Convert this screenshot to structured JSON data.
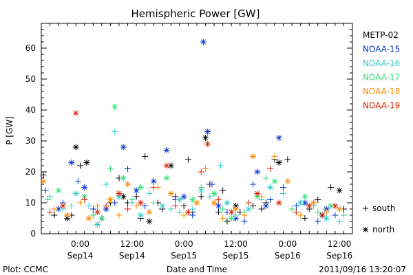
{
  "chart_data": {
    "type": "scatter",
    "title": "Hemispheric Power [GW]",
    "ylabel": "P [GW]",
    "xlabel": "Date and Time",
    "ylim": [
      0,
      68
    ],
    "xlim": [
      "2011-09-13 15:00",
      "2011-09-16 15:00"
    ],
    "yticks": [
      0,
      10,
      20,
      30,
      40,
      50,
      60
    ],
    "xticks": [
      {
        "time": "2011-09-14 00:00",
        "label": "0:00",
        "date": "Sep14"
      },
      {
        "time": "2011-09-14 12:00",
        "label": "12:00",
        "date": "Sep14"
      },
      {
        "time": "2011-09-15 00:00",
        "label": "0:00",
        "date": "Sep15"
      },
      {
        "time": "2011-09-15 12:00",
        "label": "12:00",
        "date": "Sep15"
      },
      {
        "time": "2011-09-16 00:00",
        "label": "0:00",
        "date": "Sep16"
      },
      {
        "time": "2011-09-16 12:00",
        "label": "12:00",
        "date": "Sep16"
      }
    ],
    "legend_placement": "right",
    "series": [
      {
        "name": "METP-02",
        "color": "#000000",
        "points": [
          [
            "2011-09-13 15:30",
            19,
            "+"
          ],
          [
            "2011-09-13 18:00",
            6,
            "+"
          ],
          [
            "2011-09-13 21:00",
            5,
            "*"
          ],
          [
            "2011-09-13 22:00",
            6,
            "+"
          ],
          [
            "2011-09-13 23:00",
            28,
            "*"
          ],
          [
            "2011-09-14 00:00",
            22,
            "+"
          ],
          [
            "2011-09-14 01:30",
            23,
            "*"
          ],
          [
            "2011-09-14 03:00",
            6,
            "+"
          ],
          [
            "2011-09-14 05:00",
            5,
            "*"
          ],
          [
            "2011-09-14 07:00",
            10,
            "+"
          ],
          [
            "2011-09-14 09:00",
            18,
            "+"
          ],
          [
            "2011-09-14 10:00",
            12,
            "*"
          ],
          [
            "2011-09-14 11:00",
            10,
            "+"
          ],
          [
            "2011-09-14 13:00",
            12,
            "+"
          ],
          [
            "2011-09-14 14:00",
            5,
            "+"
          ],
          [
            "2011-09-14 15:00",
            25,
            "+"
          ],
          [
            "2011-09-14 16:00",
            4,
            "*"
          ],
          [
            "2011-09-14 18:00",
            10,
            "+"
          ],
          [
            "2011-09-14 19:00",
            8,
            "+"
          ],
          [
            "2011-09-14 21:00",
            22,
            "*"
          ],
          [
            "2011-09-14 22:00",
            12,
            "+"
          ],
          [
            "2011-09-15 00:00",
            9,
            "+"
          ],
          [
            "2011-09-15 01:00",
            24,
            "+"
          ],
          [
            "2011-09-15 02:00",
            7,
            "+"
          ],
          [
            "2011-09-15 04:00",
            12,
            "+"
          ],
          [
            "2011-09-15 05:00",
            31,
            "*"
          ],
          [
            "2011-09-15 06:00",
            16,
            "+"
          ],
          [
            "2011-09-15 08:00",
            7,
            "+"
          ],
          [
            "2011-09-15 09:00",
            14,
            "+"
          ],
          [
            "2011-09-15 10:00",
            4,
            "+"
          ],
          [
            "2011-09-15 12:00",
            9,
            "*"
          ],
          [
            "2011-09-15 13:00",
            7,
            "+"
          ],
          [
            "2011-09-15 16:00",
            9,
            "+"
          ],
          [
            "2011-09-15 18:00",
            8,
            "+"
          ],
          [
            "2011-09-15 19:00",
            10,
            "+"
          ],
          [
            "2011-09-15 21:00",
            24,
            "+"
          ],
          [
            "2011-09-15 22:00",
            23,
            "*"
          ],
          [
            "2011-09-16 00:00",
            24,
            "+"
          ],
          [
            "2011-09-16 02:00",
            7,
            "+"
          ],
          [
            "2011-09-16 04:00",
            5,
            "+"
          ],
          [
            "2011-09-16 05:00",
            8,
            "+"
          ],
          [
            "2011-09-16 07:00",
            11,
            "+"
          ],
          [
            "2011-09-16 08:00",
            6,
            "*"
          ],
          [
            "2011-09-16 10:00",
            15,
            "+"
          ],
          [
            "2011-09-16 12:00",
            14,
            "*"
          ],
          [
            "2011-09-16 13:00",
            8,
            "+"
          ]
        ]
      },
      {
        "name": "NOAA-15",
        "color": "#0033cc",
        "points": [
          [
            "2011-09-13 16:00",
            14,
            "+"
          ],
          [
            "2011-09-13 19:00",
            8,
            "*"
          ],
          [
            "2011-09-13 20:00",
            10,
            "+"
          ],
          [
            "2011-09-13 22:00",
            23,
            "*"
          ],
          [
            "2011-09-13 23:30",
            17,
            "+"
          ],
          [
            "2011-09-14 01:00",
            15,
            "*"
          ],
          [
            "2011-09-14 03:00",
            8,
            "+"
          ],
          [
            "2011-09-14 06:00",
            8,
            "*"
          ],
          [
            "2011-09-14 08:00",
            10,
            "+"
          ],
          [
            "2011-09-14 10:00",
            28,
            "*"
          ],
          [
            "2011-09-14 11:00",
            21,
            "+"
          ],
          [
            "2011-09-14 13:00",
            14,
            "*"
          ],
          [
            "2011-09-14 15:00",
            9,
            "+"
          ],
          [
            "2011-09-14 17:00",
            17,
            "*"
          ],
          [
            "2011-09-14 20:00",
            27,
            "*"
          ],
          [
            "2011-09-14 22:00",
            11,
            "+"
          ],
          [
            "2011-09-15 00:00",
            12,
            "*"
          ],
          [
            "2011-09-15 02:00",
            6,
            "+"
          ],
          [
            "2011-09-15 04:30",
            62,
            "*"
          ],
          [
            "2011-09-15 05:30",
            33,
            "*"
          ],
          [
            "2011-09-15 06:30",
            16,
            "+"
          ],
          [
            "2011-09-15 08:00",
            9,
            "*"
          ],
          [
            "2011-09-15 10:00",
            7,
            "+"
          ],
          [
            "2011-09-15 12:00",
            5,
            "*"
          ],
          [
            "2011-09-15 14:00",
            4,
            "+"
          ],
          [
            "2011-09-15 16:00",
            16,
            "+"
          ],
          [
            "2011-09-15 17:00",
            20,
            "*"
          ],
          [
            "2011-09-15 19:00",
            9,
            "*"
          ],
          [
            "2011-09-15 20:00",
            11,
            "+"
          ],
          [
            "2011-09-15 22:00",
            31,
            "*"
          ],
          [
            "2011-09-15 23:00",
            15,
            "+"
          ],
          [
            "2011-09-16 02:00",
            9,
            "+"
          ],
          [
            "2011-09-16 04:00",
            10,
            "*"
          ],
          [
            "2011-09-16 07:00",
            4,
            "+"
          ],
          [
            "2011-09-16 09:00",
            8,
            "*"
          ],
          [
            "2011-09-16 11:00",
            6,
            "+"
          ]
        ]
      },
      {
        "name": "NOAA-16",
        "color": "#33cccc",
        "points": [
          [
            "2011-09-13 17:00",
            12,
            "+"
          ],
          [
            "2011-09-13 20:00",
            8,
            "+"
          ],
          [
            "2011-09-13 23:00",
            13,
            "*"
          ],
          [
            "2011-09-14 02:00",
            9,
            "+"
          ],
          [
            "2011-09-14 04:00",
            3,
            "*"
          ],
          [
            "2011-09-14 06:00",
            16,
            "+"
          ],
          [
            "2011-09-14 08:00",
            33,
            "+"
          ],
          [
            "2011-09-14 09:00",
            12,
            "*"
          ],
          [
            "2011-09-14 12:00",
            10,
            "+"
          ],
          [
            "2011-09-14 14:00",
            6,
            "*"
          ],
          [
            "2011-09-14 16:00",
            13,
            "+"
          ],
          [
            "2011-09-14 19:00",
            9,
            "*"
          ],
          [
            "2011-09-14 21:00",
            8,
            "+"
          ],
          [
            "2011-09-14 23:00",
            11,
            "*"
          ],
          [
            "2011-09-15 02:00",
            8,
            "+"
          ],
          [
            "2011-09-15 04:00",
            14,
            "*"
          ],
          [
            "2011-09-15 06:00",
            12,
            "+"
          ],
          [
            "2011-09-15 08:30",
            22,
            "+"
          ],
          [
            "2011-09-15 10:00",
            10,
            "*"
          ],
          [
            "2011-09-15 12:00",
            6,
            "+"
          ],
          [
            "2011-09-15 15:00",
            8,
            "*"
          ],
          [
            "2011-09-15 18:00",
            11,
            "+"
          ],
          [
            "2011-09-15 20:00",
            15,
            "*"
          ],
          [
            "2011-09-15 23:00",
            13,
            "+"
          ],
          [
            "2011-09-16 03:00",
            10,
            "*"
          ],
          [
            "2011-09-16 06:00",
            9,
            "+"
          ],
          [
            "2011-09-16 09:00",
            5,
            "*"
          ],
          [
            "2011-09-16 12:00",
            4,
            "+"
          ]
        ]
      },
      {
        "name": "NOAA-17",
        "color": "#33dd77",
        "points": [
          [
            "2011-09-13 16:30",
            11,
            "+"
          ],
          [
            "2011-09-13 19:00",
            14,
            "*"
          ],
          [
            "2011-09-13 22:00",
            9,
            "+"
          ],
          [
            "2011-09-14 01:00",
            12,
            "*"
          ],
          [
            "2011-09-14 03:00",
            6,
            "+"
          ],
          [
            "2011-09-14 05:00",
            5,
            "*"
          ],
          [
            "2011-09-14 07:00",
            21,
            "+"
          ],
          [
            "2011-09-14 08:00",
            41,
            "*"
          ],
          [
            "2011-09-14 10:00",
            18,
            "*"
          ],
          [
            "2011-09-14 12:00",
            11,
            "+"
          ],
          [
            "2011-09-14 14:00",
            15,
            "*"
          ],
          [
            "2011-09-14 17:00",
            10,
            "+"
          ],
          [
            "2011-09-14 20:00",
            18,
            "*"
          ],
          [
            "2011-09-14 23:00",
            7,
            "+"
          ],
          [
            "2011-09-15 02:00",
            11,
            "*"
          ],
          [
            "2011-09-15 04:00",
            15,
            "+"
          ],
          [
            "2011-09-15 07:00",
            13,
            "*"
          ],
          [
            "2011-09-15 09:00",
            8,
            "+"
          ],
          [
            "2011-09-15 11:00",
            5,
            "*"
          ],
          [
            "2011-09-15 14:00",
            7,
            "+"
          ],
          [
            "2011-09-15 17:00",
            12,
            "*"
          ],
          [
            "2011-09-15 19:00",
            18,
            "+"
          ],
          [
            "2011-09-15 21:00",
            17,
            "*"
          ],
          [
            "2011-09-16 01:00",
            8,
            "+"
          ],
          [
            "2011-09-16 04:00",
            12,
            "*"
          ],
          [
            "2011-09-16 07:00",
            7,
            "+"
          ],
          [
            "2011-09-16 10:00",
            9,
            "*"
          ],
          [
            "2011-09-16 13:00",
            6,
            "+"
          ]
        ]
      },
      {
        "name": "NOAA-18",
        "color": "#ff8800",
        "points": [
          [
            "2011-09-13 15:30",
            17,
            "*"
          ],
          [
            "2011-09-13 18:00",
            8,
            "+"
          ],
          [
            "2011-09-13 21:00",
            6,
            "*"
          ],
          [
            "2011-09-14 00:00",
            10,
            "+"
          ],
          [
            "2011-09-14 02:00",
            5,
            "*"
          ],
          [
            "2011-09-14 04:00",
            9,
            "+"
          ],
          [
            "2011-09-14 07:00",
            11,
            "*"
          ],
          [
            "2011-09-14 09:00",
            6,
            "+"
          ],
          [
            "2011-09-14 11:00",
            16,
            "*"
          ],
          [
            "2011-09-14 13:00",
            9,
            "+"
          ],
          [
            "2011-09-14 16:00",
            7,
            "*"
          ],
          [
            "2011-09-14 18:00",
            15,
            "+"
          ],
          [
            "2011-09-14 21:00",
            13,
            "*"
          ],
          [
            "2011-09-15 00:00",
            6,
            "+"
          ],
          [
            "2011-09-15 03:00",
            10,
            "*"
          ],
          [
            "2011-09-15 05:00",
            21,
            "+"
          ],
          [
            "2011-09-15 07:00",
            10,
            "*"
          ],
          [
            "2011-09-15 09:00",
            5,
            "+"
          ],
          [
            "2011-09-15 12:00",
            8,
            "*"
          ],
          [
            "2011-09-15 14:00",
            6,
            "+"
          ],
          [
            "2011-09-15 16:00",
            25,
            "*"
          ],
          [
            "2011-09-15 18:00",
            12,
            "+"
          ],
          [
            "2011-09-15 21:00",
            25,
            "+"
          ],
          [
            "2011-09-16 00:00",
            17,
            "*"
          ],
          [
            "2011-09-16 03:00",
            6,
            "+"
          ],
          [
            "2011-09-16 06:00",
            10,
            "*"
          ],
          [
            "2011-09-16 09:00",
            7,
            "+"
          ],
          [
            "2011-09-16 12:00",
            8,
            "*"
          ]
        ]
      },
      {
        "name": "NOAA-19",
        "color": "#dd2200",
        "points": [
          [
            "2011-09-13 17:00",
            7,
            "+"
          ],
          [
            "2011-09-13 20:00",
            9,
            "*"
          ],
          [
            "2011-09-13 23:00",
            39,
            "*"
          ],
          [
            "2011-09-14 01:00",
            11,
            "+"
          ],
          [
            "2011-09-14 04:00",
            7,
            "*"
          ],
          [
            "2011-09-14 06:00",
            9,
            "+"
          ],
          [
            "2011-09-14 09:00",
            13,
            "*"
          ],
          [
            "2011-09-14 11:00",
            8,
            "+"
          ],
          [
            "2011-09-14 14:00",
            10,
            "*"
          ],
          [
            "2011-09-14 17:00",
            15,
            "+"
          ],
          [
            "2011-09-14 20:00",
            22,
            "*"
          ],
          [
            "2011-09-14 22:00",
            9,
            "+"
          ],
          [
            "2011-09-15 01:00",
            7,
            "*"
          ],
          [
            "2011-09-15 04:00",
            20,
            "+"
          ],
          [
            "2011-09-15 05:30",
            29,
            "*"
          ],
          [
            "2011-09-15 08:00",
            11,
            "+"
          ],
          [
            "2011-09-15 11:00",
            7,
            "*"
          ],
          [
            "2011-09-15 15:00",
            10,
            "+"
          ],
          [
            "2011-09-15 17:00",
            13,
            "*"
          ],
          [
            "2011-09-15 20:00",
            21,
            "+"
          ],
          [
            "2011-09-15 22:00",
            10,
            "*"
          ],
          [
            "2011-09-16 02:00",
            7,
            "+"
          ],
          [
            "2011-09-16 05:00",
            9,
            "*"
          ],
          [
            "2011-09-16 08:00",
            6,
            "+"
          ],
          [
            "2011-09-16 11:00",
            9,
            "*"
          ]
        ]
      }
    ],
    "marker_legend": [
      {
        "symbol": "+",
        "label": "south"
      },
      {
        "symbol": "*",
        "label": "north"
      }
    ]
  },
  "footer": {
    "left": "Plot: CCMC",
    "right": "2011/09/16 13:20:07"
  }
}
